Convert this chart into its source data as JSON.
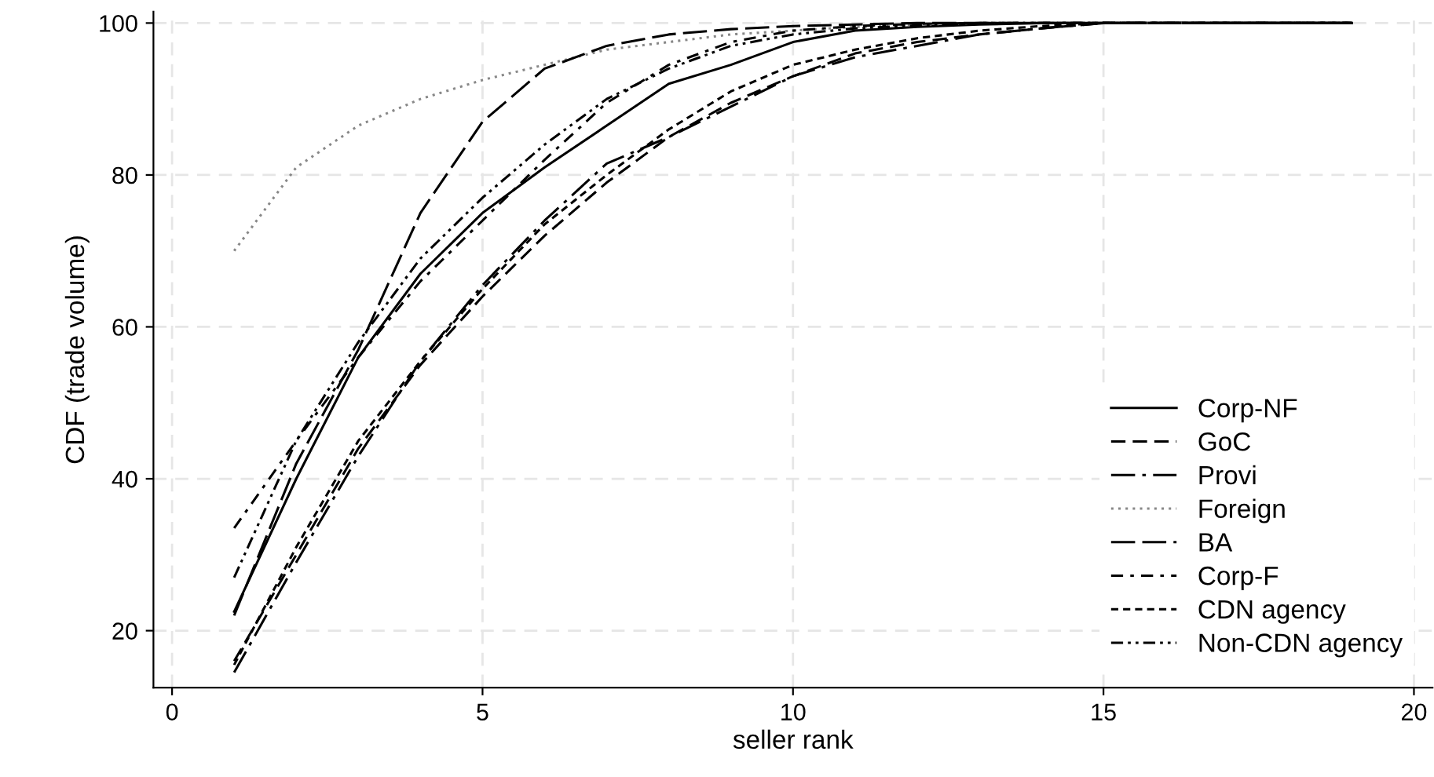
{
  "chart_data": {
    "type": "line",
    "xlabel": "seller rank",
    "ylabel": "CDF (trade volume)",
    "x": [
      1,
      2,
      3,
      4,
      5,
      6,
      7,
      8,
      9,
      10,
      11,
      12,
      13,
      14,
      15,
      16,
      17,
      18,
      19
    ],
    "xlim": [
      -0.3,
      20.3
    ],
    "xticks": [
      0,
      5,
      10,
      15,
      20
    ],
    "ylim": [
      12.5,
      101.5
    ],
    "yticks": [
      20,
      40,
      60,
      80,
      100
    ],
    "grid": true,
    "legend": "bottom right",
    "marker": "none",
    "series": [
      {
        "name": "Corp-NF",
        "color": "#000000",
        "line_style": "solid",
        "values": [
          22.5,
          40,
          56,
          67,
          75,
          81,
          86.5,
          92,
          94.5,
          97.5,
          99,
          99.5,
          99.8,
          100,
          100,
          100,
          100,
          100,
          100
        ]
      },
      {
        "name": "GoC",
        "color": "#000000",
        "line_style": "dashed",
        "values": [
          16,
          30,
          44,
          55,
          64,
          72,
          79,
          85,
          89.5,
          93,
          96,
          97.5,
          98.5,
          99.3,
          100,
          100,
          100,
          100,
          100
        ]
      },
      {
        "name": "Provi",
        "color": "#000000",
        "line_style": "longdashdot",
        "values": [
          14.5,
          29,
          43,
          55.5,
          65.5,
          74,
          81.5,
          85,
          89,
          93,
          95.5,
          97,
          98.5,
          99.3,
          100,
          100,
          100,
          100,
          100
        ]
      },
      {
        "name": "Foreign",
        "color": "#888888",
        "line_style": "dotted",
        "values": [
          70,
          81,
          86.5,
          90,
          92.5,
          94.5,
          96.5,
          97.5,
          98.5,
          99,
          99.5,
          99.8,
          100,
          100,
          100,
          100,
          100,
          100,
          100
        ]
      },
      {
        "name": "BA",
        "color": "#000000",
        "line_style": "longdash",
        "values": [
          22,
          42,
          57,
          75,
          87,
          94,
          97,
          98.5,
          99.2,
          99.6,
          99.8,
          100,
          100,
          100,
          100,
          100,
          100,
          100,
          100
        ]
      },
      {
        "name": "Corp-F",
        "color": "#000000",
        "line_style": "dashdot",
        "values": [
          33.5,
          45,
          56,
          66,
          74,
          82,
          89.5,
          94.5,
          97.5,
          99,
          99.6,
          99.9,
          100,
          100,
          100,
          100,
          100,
          100,
          100
        ]
      },
      {
        "name": "CDN agency",
        "color": "#000000",
        "line_style": "shortdash",
        "values": [
          15.5,
          31,
          45,
          55.5,
          65,
          73.5,
          80,
          86,
          91,
          94.5,
          96.5,
          98,
          99,
          99.6,
          100,
          100,
          100,
          100,
          100
        ]
      },
      {
        "name": "Non-CDN agency",
        "color": "#000000",
        "line_style": "dashdotdot",
        "values": [
          27,
          45,
          58,
          69,
          77,
          84,
          90,
          94,
          97,
          98.5,
          99.3,
          99.7,
          100,
          100,
          100,
          100,
          100,
          100,
          100
        ]
      }
    ]
  }
}
